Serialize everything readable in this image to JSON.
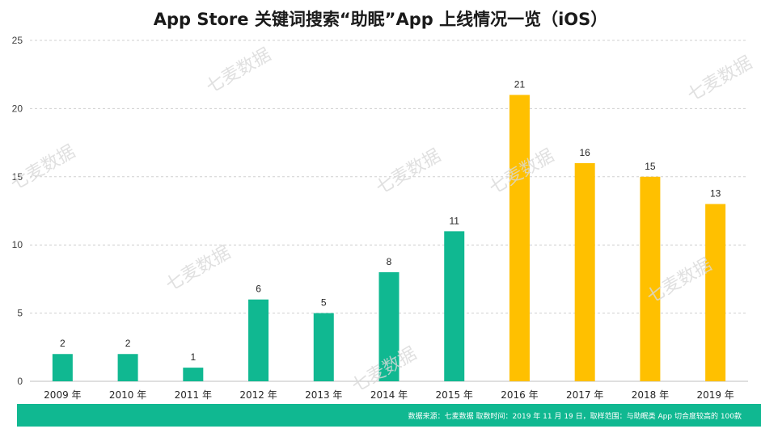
{
  "chart_data": {
    "type": "bar",
    "title": "App Store 关键词搜索“助眠”App 上线情况一览（iOS）",
    "categories": [
      "2009 年",
      "2010 年",
      "2011 年",
      "2012 年",
      "2013 年",
      "2014 年",
      "2015 年",
      "2016 年",
      "2017 年",
      "2018 年",
      "2019 年"
    ],
    "values": [
      2,
      2,
      1,
      6,
      5,
      8,
      11,
      21,
      16,
      15,
      13
    ],
    "bar_colors": [
      "#10b891",
      "#10b891",
      "#10b891",
      "#10b891",
      "#10b891",
      "#10b891",
      "#10b891",
      "#ffc000",
      "#ffc000",
      "#ffc000",
      "#ffc000"
    ],
    "ylim": [
      0,
      25
    ],
    "yticks": [
      0,
      5,
      10,
      15,
      20,
      25
    ],
    "xlabel": "",
    "ylabel": "",
    "grid": true,
    "legend": "none"
  },
  "watermark": "七麦数据",
  "footer": {
    "text": "数据来源：七麦数据    取数时间：2019 年 11 月 19 日，取样范围：与助眠类 App  切合度较高的 100款"
  },
  "colors": {
    "green": "#10b891",
    "yellow": "#ffc000",
    "footer_bg": "#10b891"
  }
}
